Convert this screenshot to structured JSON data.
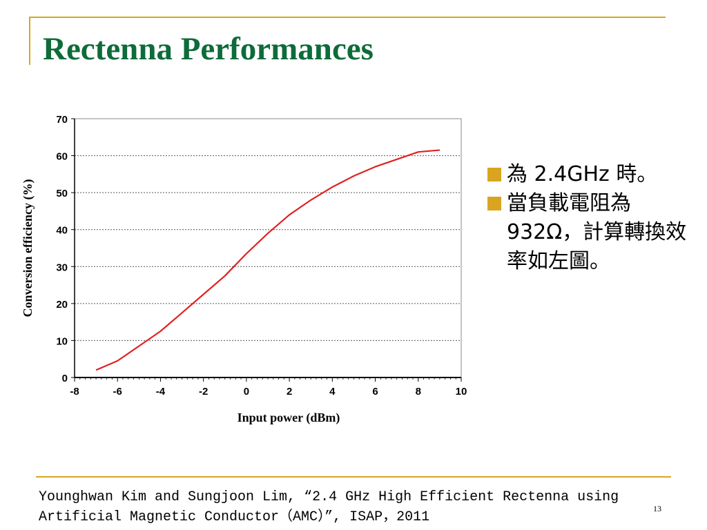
{
  "slide": {
    "title": "Rectenna Performances",
    "page_number": "13"
  },
  "bullets": [
    {
      "text": "為 2.4GHz 時。"
    },
    {
      "text": "當負載電阻為 932Ω，計算轉換效率如左圖。"
    }
  ],
  "citation": {
    "line1": "Younghwan Kim and Sungjoon Lim, “2.4 GHz High Efficient Rectenna using",
    "line2": "Artificial Magnetic Conductor（AMC）”, ISAP，2011"
  },
  "colors": {
    "accent": "#D9A521",
    "title": "#0E6B3A",
    "curve": "#E02020"
  },
  "chart_data": {
    "type": "line",
    "title": "",
    "xlabel": "Input power (dBm)",
    "ylabel": "Conversion efficiency (%)",
    "xlim": [
      -8,
      10
    ],
    "ylim": [
      0,
      70
    ],
    "xticks": [
      -8,
      -6,
      -4,
      -2,
      0,
      2,
      4,
      6,
      8,
      10
    ],
    "yticks": [
      0,
      10,
      20,
      30,
      40,
      50,
      60,
      70
    ],
    "grid": "horizontal dotted",
    "series": [
      {
        "x": [
          -7,
          -6,
          -5,
          -4,
          -3,
          -2,
          -1,
          0,
          1,
          2,
          3,
          4,
          5,
          6,
          7,
          8,
          9
        ],
        "y": [
          2,
          4.5,
          8.5,
          12.5,
          17.5,
          22.5,
          27.5,
          33.5,
          39,
          44,
          48,
          51.5,
          54.5,
          57,
          59,
          61,
          61.5
        ]
      }
    ]
  }
}
